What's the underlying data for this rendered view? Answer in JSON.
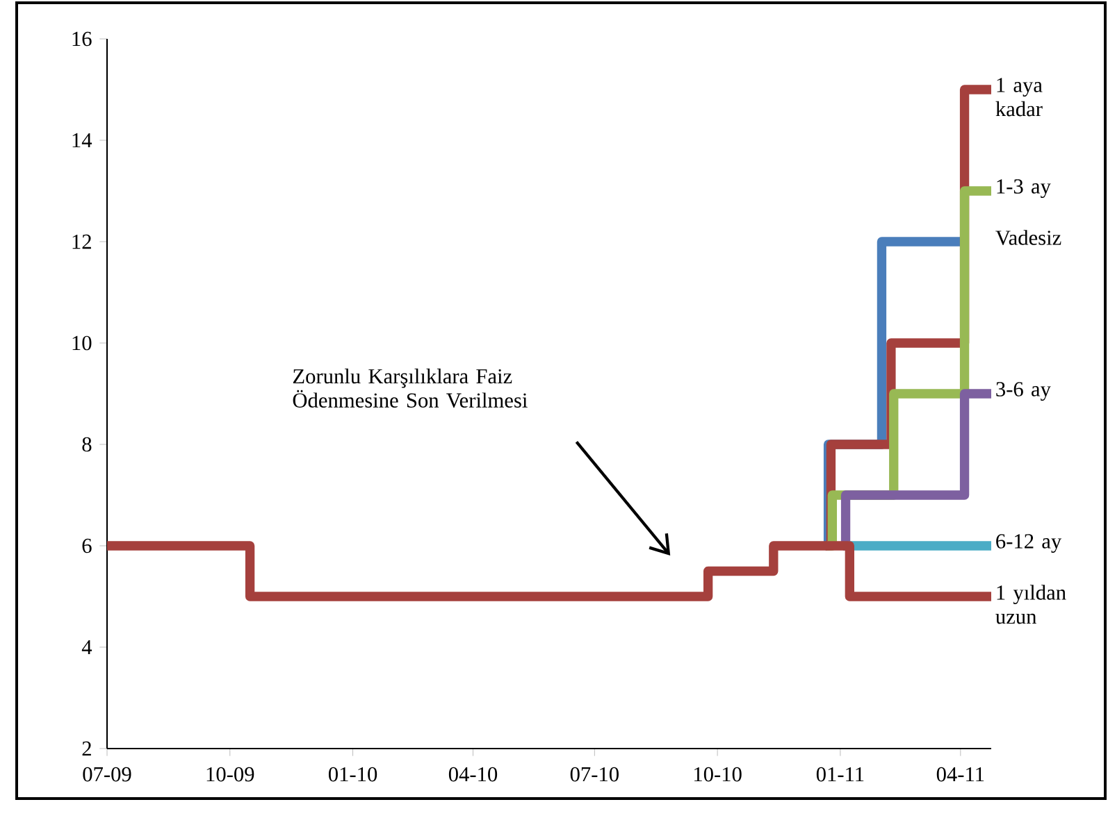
{
  "chart_data": {
    "type": "step",
    "marker": "none",
    "grid": false,
    "xlim": [
      "2009-07-01",
      "2011-04-24"
    ],
    "xticks": [
      {
        "value": "2009-07-01",
        "label": "07-09"
      },
      {
        "value": "2009-10-01",
        "label": "10-09"
      },
      {
        "value": "2010-01-01",
        "label": "01-10"
      },
      {
        "value": "2010-04-01",
        "label": "04-10"
      },
      {
        "value": "2010-07-01",
        "label": "07-10"
      },
      {
        "value": "2010-10-01",
        "label": "10-10"
      },
      {
        "value": "2011-01-01",
        "label": "01-11"
      },
      {
        "value": "2011-04-01",
        "label": "04-11"
      }
    ],
    "ylim": [
      2,
      16
    ],
    "yticks": [
      2,
      4,
      6,
      8,
      10,
      12,
      14,
      16
    ],
    "series": [
      {
        "name": "Vadesiz",
        "color": "#4a7ebb",
        "x": [
          "2010-12-21",
          "2010-12-23",
          "2011-02-01",
          "2011-04-04"
        ],
        "values": [
          6,
          8,
          12,
          12
        ]
      },
      {
        "name": "1 aya kadar",
        "color": "#a5403d",
        "x": [
          "2010-12-21",
          "2010-12-25",
          "2011-02-08",
          "2011-04-04",
          "2011-04-24"
        ],
        "values": [
          6,
          8,
          10,
          15,
          15
        ]
      },
      {
        "name": "1-3 ay",
        "color": "#98b954",
        "x": [
          "2010-12-22",
          "2010-12-26",
          "2011-02-10",
          "2011-04-04",
          "2011-04-24"
        ],
        "values": [
          6,
          7,
          9,
          13,
          13
        ]
      },
      {
        "name": "3-6 ay",
        "color": "#7d60a0",
        "x": [
          "2011-01-03",
          "2011-01-05",
          "2011-04-04",
          "2011-04-24"
        ],
        "values": [
          6,
          7,
          9,
          9
        ]
      },
      {
        "name": "6-12 ay",
        "color": "#4bacc6",
        "x": [
          "2011-01-07",
          "2011-04-24"
        ],
        "values": [
          6,
          6
        ]
      },
      {
        "name": "1 yıldan uzun",
        "color": "#a5403d",
        "x": [
          "2009-07-01",
          "2009-10-16",
          "2010-09-24",
          "2010-11-12",
          "2011-01-08",
          "2011-04-24"
        ],
        "values": [
          6,
          5,
          5.5,
          6,
          5,
          5
        ]
      }
    ],
    "annotations": [
      "Zorunlu Karşılıklara Faiz Ödenmesine Son Verilmesi"
    ]
  }
}
